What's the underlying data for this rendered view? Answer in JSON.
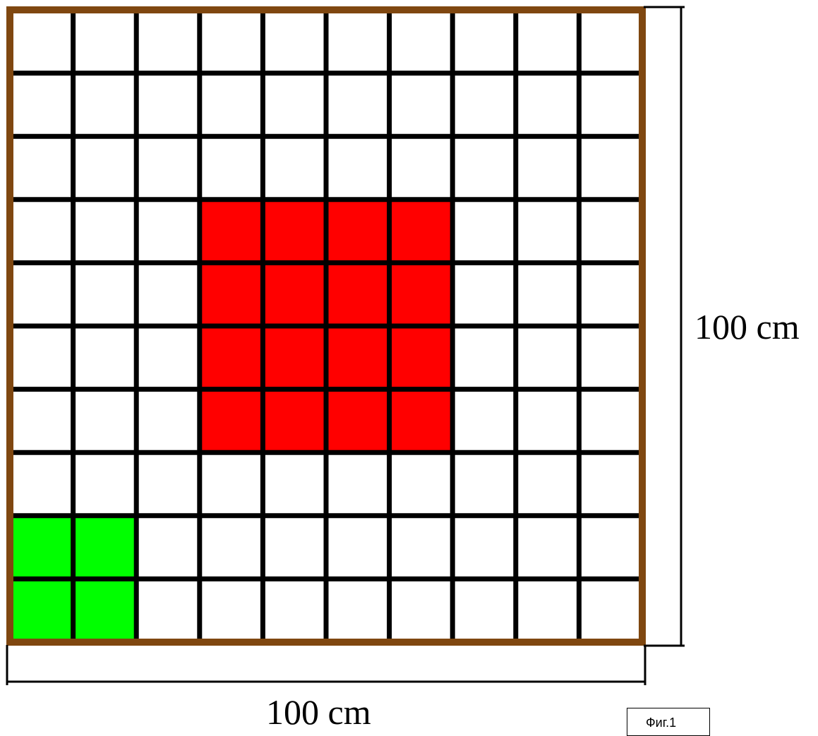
{
  "grid": {
    "rows": 10,
    "cols": 10,
    "frame_color": "#7f4710",
    "line_color": "#000000",
    "cell_color": "#ffffff"
  },
  "regions": [
    {
      "name": "red-region",
      "color": "#ff0000",
      "rows": [
        3,
        4,
        5,
        6
      ],
      "cols": [
        3,
        4,
        5,
        6
      ]
    },
    {
      "name": "green-region",
      "color": "#00ff00",
      "rows": [
        8,
        9
      ],
      "cols": [
        0,
        1
      ]
    }
  ],
  "dimensions": {
    "height_label": "100 cm",
    "width_label": "100 cm"
  },
  "figure_caption": "Фиг.1"
}
